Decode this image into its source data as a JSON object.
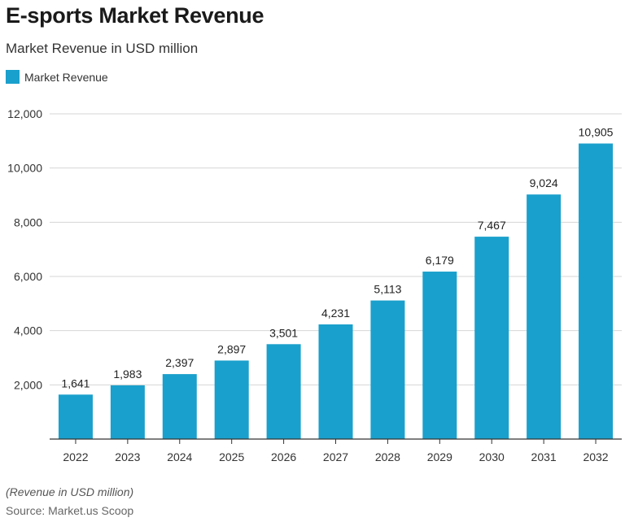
{
  "title": "E-sports Market Revenue",
  "subtitle": "Market Revenue in USD million",
  "note": "(Revenue in USD million)",
  "source": "Source: Market.us Scoop",
  "colors": {
    "bar": "#1aa0cc",
    "grid": "#d6d6d6",
    "axis": "#333333"
  },
  "chart_data": {
    "type": "bar",
    "categories": [
      "2022",
      "2023",
      "2024",
      "2025",
      "2026",
      "2027",
      "2028",
      "2029",
      "2030",
      "2031",
      "2032"
    ],
    "series": [
      {
        "name": "Market Revenue",
        "values": [
          1641,
          1983,
          2397,
          2897,
          3501,
          4231,
          5113,
          6179,
          7467,
          9024,
          10905
        ]
      }
    ],
    "value_labels": [
      "1,641",
      "1,983",
      "2,397",
      "2,897",
      "3,501",
      "4,231",
      "5,113",
      "6,179",
      "7,467",
      "9,024",
      "10,905"
    ],
    "yticks": [
      2000,
      4000,
      6000,
      8000,
      10000,
      12000
    ],
    "ytick_labels": [
      "2,000",
      "4,000",
      "6,000",
      "8,000",
      "10,000",
      "12,000"
    ],
    "ylim": [
      0,
      12000
    ],
    "grid": true,
    "legend_position": "top-left"
  }
}
